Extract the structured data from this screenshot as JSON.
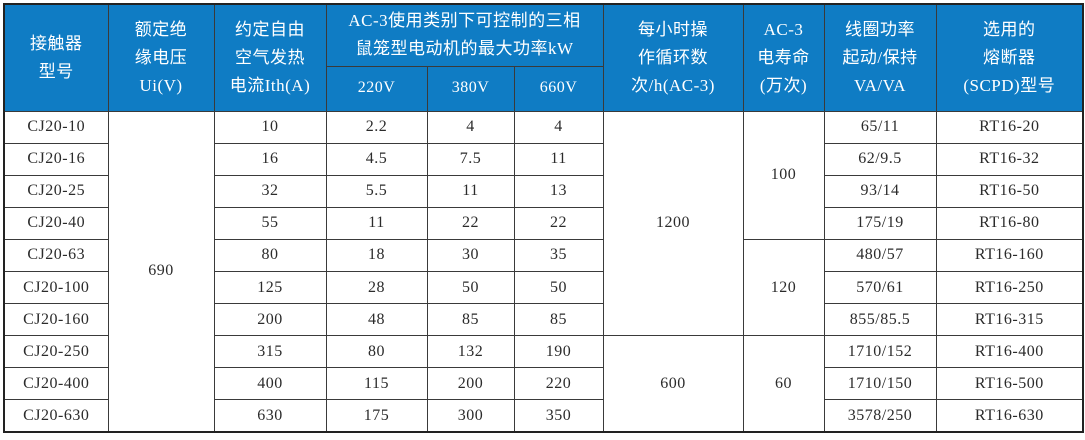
{
  "accent_color": "#0f7cc4",
  "border_color": "#3a3a3a",
  "table": {
    "header": {
      "model": "接触器\n型号",
      "insulation_voltage": "额定绝\n缘电压\nUi(V)",
      "thermal_current": "约定自由\n空气发热\n电流Ith(A)",
      "ac3_power_group": "AC-3使用类别下可控制的三相\n鼠笼型电动机的最大功率kW",
      "v220": "220V",
      "v380": "380V",
      "v660": "660V",
      "cycles_per_hour": "每小时操\n作循环数\n次/h(AC-3)",
      "electrical_life": "AC-3\n电寿命\n(万次)",
      "coil_power": "线圈功率\n起动/保持\nVA/VA",
      "fuse": "选用的\n熔断器\n(SCPD)型号"
    },
    "rows": [
      [
        {
          "t": "CJ20-10"
        },
        {
          "t": "690",
          "rs": 10
        },
        {
          "t": "10"
        },
        {
          "t": "2.2"
        },
        {
          "t": "4"
        },
        {
          "t": "4"
        },
        {
          "t": "1200",
          "rs": 7
        },
        {
          "t": "100",
          "rs": 4
        },
        {
          "t": "65/11"
        },
        {
          "t": "RT16-20"
        }
      ],
      [
        {
          "t": "CJ20-16"
        },
        {
          "t": "16"
        },
        {
          "t": "4.5"
        },
        {
          "t": "7.5"
        },
        {
          "t": "11"
        },
        {
          "t": "62/9.5"
        },
        {
          "t": "RT16-32"
        }
      ],
      [
        {
          "t": "CJ20-25"
        },
        {
          "t": "32"
        },
        {
          "t": "5.5"
        },
        {
          "t": "11"
        },
        {
          "t": "13"
        },
        {
          "t": "93/14"
        },
        {
          "t": "RT16-50"
        }
      ],
      [
        {
          "t": "CJ20-40"
        },
        {
          "t": "55"
        },
        {
          "t": "11"
        },
        {
          "t": "22"
        },
        {
          "t": "22"
        },
        {
          "t": "175/19"
        },
        {
          "t": "RT16-80"
        }
      ],
      [
        {
          "t": "CJ20-63"
        },
        {
          "t": "80"
        },
        {
          "t": "18"
        },
        {
          "t": "30"
        },
        {
          "t": "35"
        },
        {
          "t": "120",
          "rs": 3
        },
        {
          "t": "480/57"
        },
        {
          "t": "RT16-160"
        }
      ],
      [
        {
          "t": "CJ20-100"
        },
        {
          "t": "125"
        },
        {
          "t": "28"
        },
        {
          "t": "50"
        },
        {
          "t": "50"
        },
        {
          "t": "570/61"
        },
        {
          "t": "RT16-250"
        }
      ],
      [
        {
          "t": "CJ20-160"
        },
        {
          "t": "200"
        },
        {
          "t": "48"
        },
        {
          "t": "85"
        },
        {
          "t": "85"
        },
        {
          "t": "855/85.5"
        },
        {
          "t": "RT16-315"
        }
      ],
      [
        {
          "t": "CJ20-250"
        },
        {
          "t": "315"
        },
        {
          "t": "80"
        },
        {
          "t": "132"
        },
        {
          "t": "190"
        },
        {
          "t": "600",
          "rs": 3
        },
        {
          "t": "60",
          "rs": 3
        },
        {
          "t": "1710/152"
        },
        {
          "t": "RT16-400"
        }
      ],
      [
        {
          "t": "CJ20-400"
        },
        {
          "t": "400"
        },
        {
          "t": "115"
        },
        {
          "t": "200"
        },
        {
          "t": "220"
        },
        {
          "t": "1710/150"
        },
        {
          "t": "RT16-500"
        }
      ],
      [
        {
          "t": "CJ20-630"
        },
        {
          "t": "630"
        },
        {
          "t": "175"
        },
        {
          "t": "300"
        },
        {
          "t": "350"
        },
        {
          "t": "3578/250"
        },
        {
          "t": "RT16-630"
        }
      ]
    ]
  }
}
